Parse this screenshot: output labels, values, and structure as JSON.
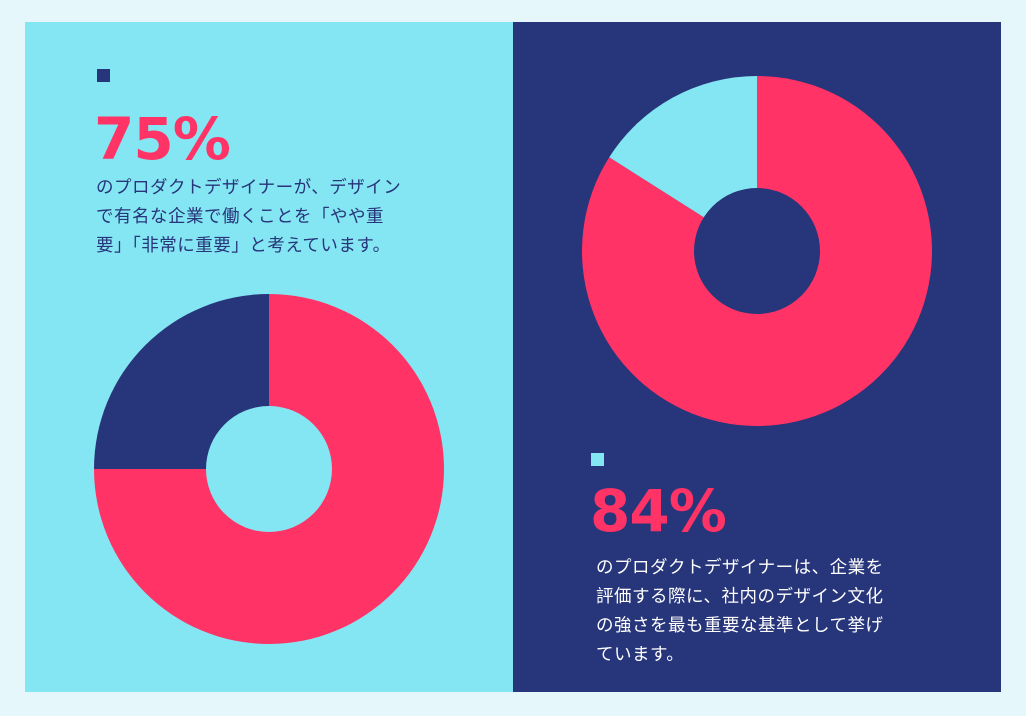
{
  "colors": {
    "page_bg": "#e6f7fb",
    "light_panel": "#84e6f2",
    "dark_panel": "#27357a",
    "accent_pink": "#ff3366",
    "caption_dark": "#27357a",
    "caption_light": "#ffffff"
  },
  "left": {
    "stat": "75%",
    "caption_lines": [
      "のプロダクトデザイナーが、デザイン",
      "で有名な企業で働くことを「やや重",
      "要」「非常に重要」と考えています。"
    ]
  },
  "right": {
    "stat": "84%",
    "caption_lines": [
      "のプロダクトデザイナーは、企業を",
      "評価する際に、社内のデザイン文化",
      "の強さを最も重要な基準として挙げ",
      "ています。"
    ]
  },
  "chart_data": [
    {
      "type": "pie",
      "donut": true,
      "slices": [
        {
          "value": 75,
          "color": "#ff3366"
        },
        {
          "value": 25,
          "color": "#27357a"
        }
      ],
      "hole_color": "#84e6f2"
    },
    {
      "type": "pie",
      "donut": true,
      "slices": [
        {
          "value": 84,
          "color": "#ff3366"
        },
        {
          "value": 16,
          "color": "#84e6f2"
        }
      ],
      "hole_color": "#27357a"
    }
  ]
}
